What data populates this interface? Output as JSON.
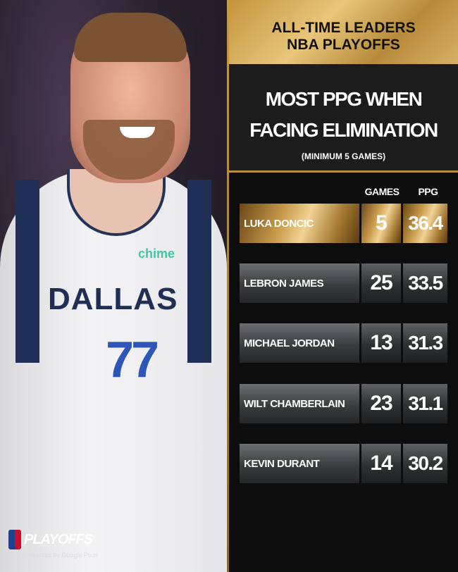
{
  "photo": {
    "sponsor": "chime",
    "jersey_text": "DALLAS",
    "jersey_number": "77"
  },
  "logo": {
    "text": "PLAYOFFS",
    "sub": "Presented by Google Pixel"
  },
  "header": {
    "line1": "ALL-TIME LEADERS",
    "line2": "NBA PLAYOFFS"
  },
  "title": {
    "line1": "MOST PPG WHEN",
    "line2": "FACING ELIMINATION",
    "note": "(MINIMUM 5 GAMES)"
  },
  "columns": {
    "games": "GAMES",
    "ppg": "PPG"
  },
  "rows": [
    {
      "name": "LUKA DONCIC",
      "games": "5",
      "ppg": "36.4"
    },
    {
      "name": "LEBRON JAMES",
      "games": "25",
      "ppg": "33.5"
    },
    {
      "name": "MICHAEL JORDAN",
      "games": "13",
      "ppg": "31.3"
    },
    {
      "name": "WILT CHAMBERLAIN",
      "games": "23",
      "ppg": "31.1"
    },
    {
      "name": "KEVIN DURANT",
      "games": "14",
      "ppg": "30.2"
    }
  ],
  "colors": {
    "gold": "#c89a4a",
    "panel": "#1c1c1c",
    "background": "#0d0d0d"
  }
}
